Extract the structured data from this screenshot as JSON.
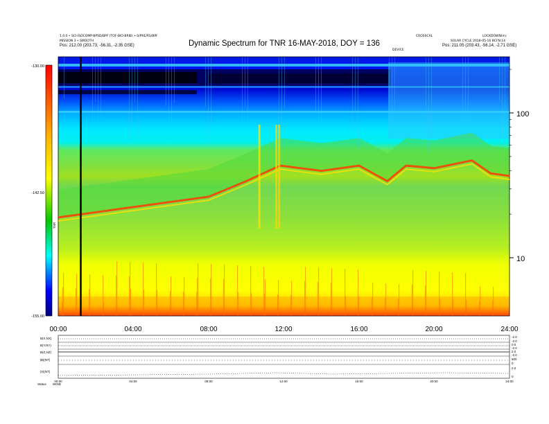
{
  "header": {
    "left_line1": "1.0.0 • SCI-ISOCOMP-BPSD/BPF (TOF-BIO-BRIB) • 0/PRE/RS/BPF",
    "left_line2": "MISSION 3 • SMOOTH",
    "left_line3": "Pos: 212.00 (203.73, -56.31, -2.35 GSE)",
    "right_line0": "LOCKDOWN(m)",
    "right_line0b": "CROSSCAL",
    "right_line1": "SOLAR CYCLE 2018-05-16 BCFN 14",
    "right_line2": "Pos: 211.05 (203.43, -56.14, -2.71 GSE)",
    "marker_label": "DEVICE"
  },
  "chart_data": {
    "type": "heatmap",
    "title": "Dynamic Spectrum for TNR 16-MAY-2018, DOY = 136",
    "colorbar": {
      "label": "TNR",
      "ticks": [
        "-130.00",
        "-142.50",
        "-155.00"
      ],
      "range": [
        -155.0,
        -130.0
      ],
      "colors": [
        "#000080",
        "#0000ff",
        "#00ffff",
        "#00c800",
        "#ffff00",
        "#ff0000"
      ]
    },
    "x_ticks": [
      "00:00",
      "04:00",
      "08:00",
      "12:00",
      "16:00",
      "20:00",
      "24:00"
    ],
    "x_range": [
      0,
      24
    ],
    "y_scale": "log",
    "y_ticks": [
      "100",
      "10"
    ],
    "features": {
      "emission_band_hours": [
        0,
        2,
        4,
        6,
        8,
        10,
        11.8,
        14,
        16,
        17.5,
        18.5,
        20,
        22,
        23,
        24
      ],
      "emission_band_levels": [
        0.38,
        0.4,
        0.42,
        0.44,
        0.46,
        0.52,
        0.58,
        0.56,
        0.58,
        0.52,
        0.58,
        0.57,
        0.6,
        0.55,
        0.54
      ],
      "bursts_hours": [
        10.7,
        11.6,
        11.75
      ],
      "data_gap_hour": 1.2
    },
    "subpanels": {
      "rows": [
        {
          "label": "B(X,NX)",
          "scale_top": "-2.0",
          "scale_bottom": "-2.0"
        },
        {
          "label": "B(Y,NY)",
          "scale_top": "0.0",
          "scale_bottom": "-2.0"
        },
        {
          "label": "B(Z,NZ)",
          "scale_top": "2.0",
          "scale_bottom": "-2.0"
        },
        {
          "label": "|B|(NT)",
          "scale_top": "500",
          "scale_bottom": "0"
        },
        {
          "label": "|V|(NT)",
          "scale_top": "2.0",
          "scale_bottom": "0"
        }
      ],
      "x_ticks": [
        "00:00",
        "04:00",
        "08:00",
        "12:00",
        "16:00",
        "20:00",
        "24:00"
      ],
      "status_label": "Status",
      "status_value": "WIND"
    }
  }
}
